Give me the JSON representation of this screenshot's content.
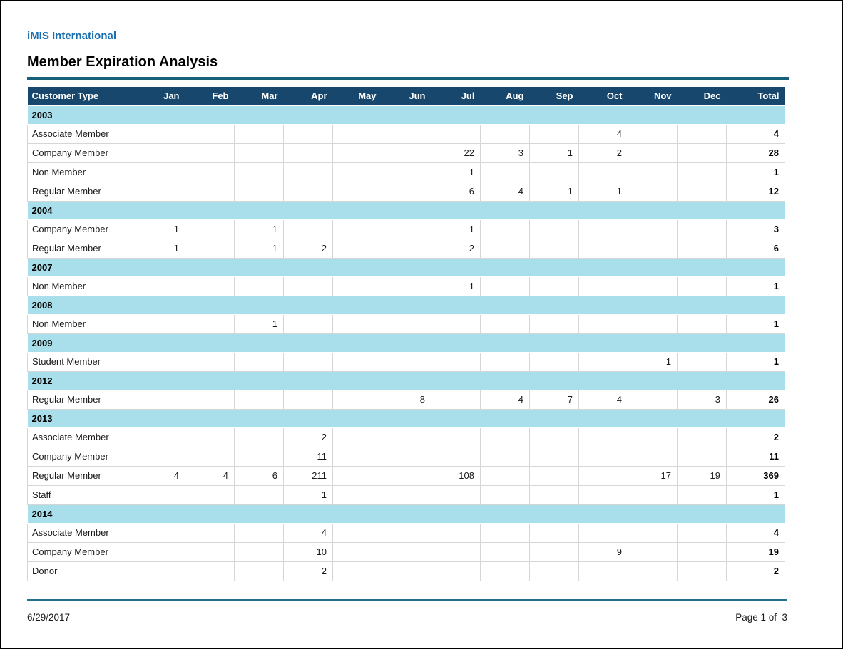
{
  "page": {
    "company": "iMIS International",
    "title": "Member Expiration Analysis",
    "footer_date": "6/29/2017",
    "footer_page": "Page 1 of  3"
  },
  "colors": {
    "company_text": "#1b6faf",
    "title_rule": "#16607a",
    "header_bg": "#17476c",
    "header_text": "#ffffff",
    "year_band_bg": "#a9dfea",
    "grid_border": "#d6d6d6",
    "footer_rule": "#23708e"
  },
  "table": {
    "columns": [
      "Customer Type",
      "Jan",
      "Feb",
      "Mar",
      "Apr",
      "May",
      "Jun",
      "Jul",
      "Aug",
      "Sep",
      "Oct",
      "Nov",
      "Dec",
      "Total"
    ],
    "sections": [
      {
        "year": "2003",
        "rows": [
          {
            "label": "Associate Member",
            "values": [
              "",
              "",
              "",
              "",
              "",
              "",
              "",
              "",
              "",
              "4",
              "",
              "",
              "4"
            ]
          },
          {
            "label": "Company Member",
            "values": [
              "",
              "",
              "",
              "",
              "",
              "",
              "22",
              "3",
              "1",
              "2",
              "",
              "",
              "28"
            ]
          },
          {
            "label": "Non Member",
            "values": [
              "",
              "",
              "",
              "",
              "",
              "",
              "1",
              "",
              "",
              "",
              "",
              "",
              "1"
            ]
          },
          {
            "label": "Regular Member",
            "values": [
              "",
              "",
              "",
              "",
              "",
              "",
              "6",
              "4",
              "1",
              "1",
              "",
              "",
              "12"
            ]
          }
        ]
      },
      {
        "year": "2004",
        "rows": [
          {
            "label": "Company Member",
            "values": [
              "1",
              "",
              "1",
              "",
              "",
              "",
              "1",
              "",
              "",
              "",
              "",
              "",
              "3"
            ]
          },
          {
            "label": "Regular Member",
            "values": [
              "1",
              "",
              "1",
              "2",
              "",
              "",
              "2",
              "",
              "",
              "",
              "",
              "",
              "6"
            ]
          }
        ]
      },
      {
        "year": "2007",
        "rows": [
          {
            "label": "Non Member",
            "values": [
              "",
              "",
              "",
              "",
              "",
              "",
              "1",
              "",
              "",
              "",
              "",
              "",
              "1"
            ]
          }
        ]
      },
      {
        "year": "2008",
        "rows": [
          {
            "label": "Non Member",
            "values": [
              "",
              "",
              "1",
              "",
              "",
              "",
              "",
              "",
              "",
              "",
              "",
              "",
              "1"
            ]
          }
        ]
      },
      {
        "year": "2009",
        "rows": [
          {
            "label": "Student Member",
            "values": [
              "",
              "",
              "",
              "",
              "",
              "",
              "",
              "",
              "",
              "",
              "1",
              "",
              "1"
            ]
          }
        ]
      },
      {
        "year": "2012",
        "rows": [
          {
            "label": "Regular Member",
            "values": [
              "",
              "",
              "",
              "",
              "",
              "8",
              "",
              "4",
              "7",
              "4",
              "",
              "3",
              "26"
            ]
          }
        ]
      },
      {
        "year": "2013",
        "rows": [
          {
            "label": "Associate Member",
            "values": [
              "",
              "",
              "",
              "2",
              "",
              "",
              "",
              "",
              "",
              "",
              "",
              "",
              "2"
            ]
          },
          {
            "label": "Company Member",
            "values": [
              "",
              "",
              "",
              "11",
              "",
              "",
              "",
              "",
              "",
              "",
              "",
              "",
              "11"
            ]
          },
          {
            "label": "Regular Member",
            "values": [
              "4",
              "4",
              "6",
              "211",
              "",
              "",
              "108",
              "",
              "",
              "",
              "17",
              "19",
              "369"
            ]
          },
          {
            "label": "Staff",
            "values": [
              "",
              "",
              "",
              "1",
              "",
              "",
              "",
              "",
              "",
              "",
              "",
              "",
              "1"
            ]
          }
        ]
      },
      {
        "year": "2014",
        "rows": [
          {
            "label": "Associate Member",
            "values": [
              "",
              "",
              "",
              "4",
              "",
              "",
              "",
              "",
              "",
              "",
              "",
              "",
              "4"
            ]
          },
          {
            "label": "Company Member",
            "values": [
              "",
              "",
              "",
              "10",
              "",
              "",
              "",
              "",
              "",
              "9",
              "",
              "",
              "19"
            ]
          },
          {
            "label": "Donor",
            "values": [
              "",
              "",
              "",
              "2",
              "",
              "",
              "",
              "",
              "",
              "",
              "",
              "",
              "2"
            ]
          }
        ]
      }
    ]
  }
}
